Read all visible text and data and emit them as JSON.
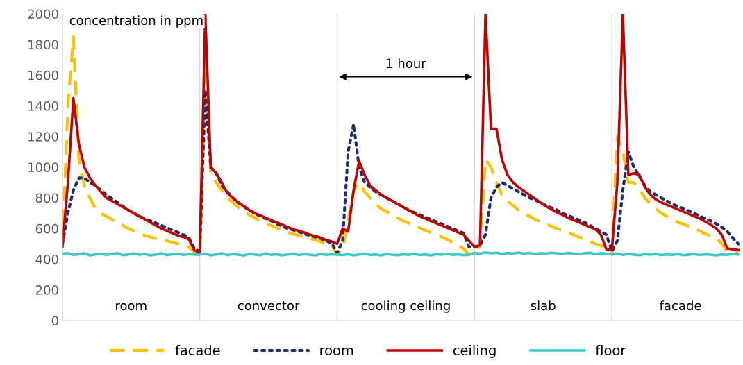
{
  "chart_data": {
    "type": "line",
    "ylabel": "concentration in ppm",
    "ylim": [
      0,
      2000
    ],
    "yticks": [
      0,
      200,
      400,
      600,
      800,
      1000,
      1200,
      1400,
      1600,
      1800,
      2000
    ],
    "categories": [
      null,
      null,
      null,
      null,
      null,
      null,
      null,
      null,
      null,
      null,
      null,
      null,
      null,
      null,
      null,
      null,
      null,
      null,
      null,
      null,
      null,
      null,
      null,
      null,
      null,
      null,
      null,
      null,
      null,
      null,
      null,
      null,
      null,
      null,
      null,
      null,
      null,
      null,
      null,
      null,
      null,
      null,
      null,
      null,
      null,
      null,
      null,
      null,
      null,
      null,
      null,
      null,
      null,
      null,
      null,
      null,
      null,
      null,
      null,
      null,
      null,
      null,
      null,
      null,
      null,
      null,
      null,
      null,
      null,
      null,
      null,
      null,
      null,
      null,
      null,
      null,
      null,
      null,
      null,
      null,
      null,
      null,
      null,
      null,
      null,
      null,
      null,
      null,
      null,
      null,
      null,
      null,
      null,
      null,
      null,
      null,
      null,
      null,
      null,
      null,
      null,
      null,
      null,
      null,
      null,
      null,
      null,
      null,
      null,
      null,
      null,
      null,
      null,
      null,
      null,
      null,
      null,
      null,
      null,
      null,
      null,
      null,
      null,
      null
    ],
    "grid": "x",
    "legend": "bottom",
    "series": [
      {
        "name": "facade",
        "color": "#ffc000",
        "line_style": "dashed",
        "values": [
          480,
          1400,
          1850,
          1050,
          880,
          800,
          730,
          700,
          680,
          660,
          640,
          620,
          600,
          585,
          570,
          555,
          545,
          535,
          525,
          520,
          510,
          500,
          490,
          480,
          445,
          430,
          1600,
          960,
          900,
          850,
          800,
          770,
          740,
          715,
          690,
          670,
          650,
          635,
          620,
          605,
          590,
          575,
          565,
          555,
          545,
          535,
          525,
          515,
          500,
          490,
          430,
          470,
          650,
          850,
          900,
          840,
          800,
          760,
          730,
          710,
          690,
          670,
          650,
          635,
          620,
          605,
          590,
          575,
          560,
          545,
          530,
          510,
          490,
          470,
          430,
          470,
          480,
          1050,
          1000,
          900,
          820,
          780,
          750,
          720,
          700,
          680,
          660,
          645,
          630,
          615,
          600,
          590,
          575,
          560,
          545,
          530,
          515,
          500,
          490,
          470,
          430,
          1200,
          1100,
          900,
          900,
          860,
          800,
          760,
          730,
          700,
          680,
          660,
          640,
          630,
          615,
          600,
          585,
          565,
          550,
          540,
          500,
          450,
          450,
          450
        ]
      },
      {
        "name": "room",
        "color": "#1f2d6b",
        "line_style": "dotted",
        "values": [
          500,
          700,
          850,
          930,
          930,
          900,
          880,
          850,
          820,
          795,
          770,
          745,
          720,
          700,
          680,
          665,
          650,
          635,
          620,
          605,
          590,
          575,
          560,
          540,
          470,
          450,
          1500,
          1000,
          960,
          880,
          840,
          800,
          770,
          745,
          720,
          700,
          680,
          665,
          650,
          630,
          615,
          600,
          590,
          580,
          565,
          555,
          545,
          535,
          520,
          505,
          440,
          520,
          1100,
          1280,
          1000,
          900,
          870,
          840,
          820,
          800,
          780,
          760,
          740,
          720,
          705,
          690,
          675,
          660,
          645,
          630,
          615,
          600,
          585,
          570,
          480,
          480,
          490,
          560,
          800,
          870,
          900,
          880,
          860,
          840,
          820,
          800,
          785,
          770,
          750,
          735,
          720,
          700,
          685,
          670,
          655,
          640,
          620,
          600,
          580,
          560,
          450,
          520,
          850,
          1100,
          1000,
          940,
          880,
          840,
          820,
          800,
          780,
          760,
          745,
          730,
          715,
          700,
          680,
          665,
          650,
          630,
          610,
          580,
          540,
          500
        ]
      },
      {
        "name": "ceiling",
        "color": "#c00000",
        "line_style": "solid",
        "values": [
          480,
          900,
          1450,
          1150,
          1000,
          930,
          880,
          840,
          800,
          780,
          760,
          740,
          720,
          700,
          680,
          660,
          640,
          620,
          600,
          585,
          570,
          555,
          545,
          530,
          460,
          440,
          2000,
          1000,
          960,
          900,
          830,
          800,
          770,
          745,
          720,
          700,
          685,
          670,
          655,
          640,
          625,
          610,
          595,
          585,
          575,
          560,
          550,
          540,
          525,
          515,
          500,
          600,
          580,
          850,
          1040,
          950,
          880,
          850,
          820,
          800,
          780,
          760,
          740,
          720,
          700,
          680,
          665,
          650,
          635,
          620,
          605,
          590,
          575,
          560,
          520,
          480,
          490,
          2000,
          1250,
          1250,
          1050,
          950,
          900,
          870,
          845,
          820,
          795,
          770,
          745,
          725,
          705,
          690,
          670,
          655,
          640,
          625,
          610,
          595,
          560,
          465,
          460,
          900,
          2000,
          950,
          960,
          950,
          870,
          820,
          790,
          770,
          755,
          740,
          725,
          710,
          695,
          680,
          665,
          645,
          625,
          600,
          560,
          470,
          465,
          460
        ]
      },
      {
        "name": "floor",
        "color": "#3cc8c8",
        "line_style": "solid",
        "values": [
          435,
          440,
          428,
          432,
          438,
          425,
          430,
          436,
          428,
          433,
          440,
          426,
          431,
          437,
          429,
          434,
          425,
          430,
          438,
          427,
          432,
          436,
          428,
          433,
          429,
          430,
          436,
          425,
          431,
          438,
          427,
          433,
          429,
          424,
          435,
          430,
          426,
          437,
          428,
          432,
          425,
          431,
          436,
          427,
          433,
          429,
          425,
          434,
          428,
          432,
          430,
          427,
          433,
          425,
          431,
          436,
          428,
          430,
          425,
          434,
          429,
          426,
          432,
          428,
          435,
          427,
          431,
          425,
          433,
          429,
          436,
          428,
          432,
          426,
          430,
          440,
          436,
          444,
          438,
          442,
          435,
          440,
          437,
          443,
          436,
          441,
          434,
          439,
          436,
          442,
          438,
          435,
          440,
          437,
          433,
          438,
          441,
          435,
          439,
          436,
          432,
          437,
          428,
          434,
          430,
          426,
          433,
          429,
          435,
          427,
          431,
          428,
          434,
          426,
          430,
          433,
          427,
          432,
          429,
          425,
          431,
          428,
          434,
          430
        ]
      }
    ],
    "annotations": [
      "room",
      "convector",
      "cooling ceiling",
      "slab",
      "facade",
      "1 hour"
    ]
  }
}
